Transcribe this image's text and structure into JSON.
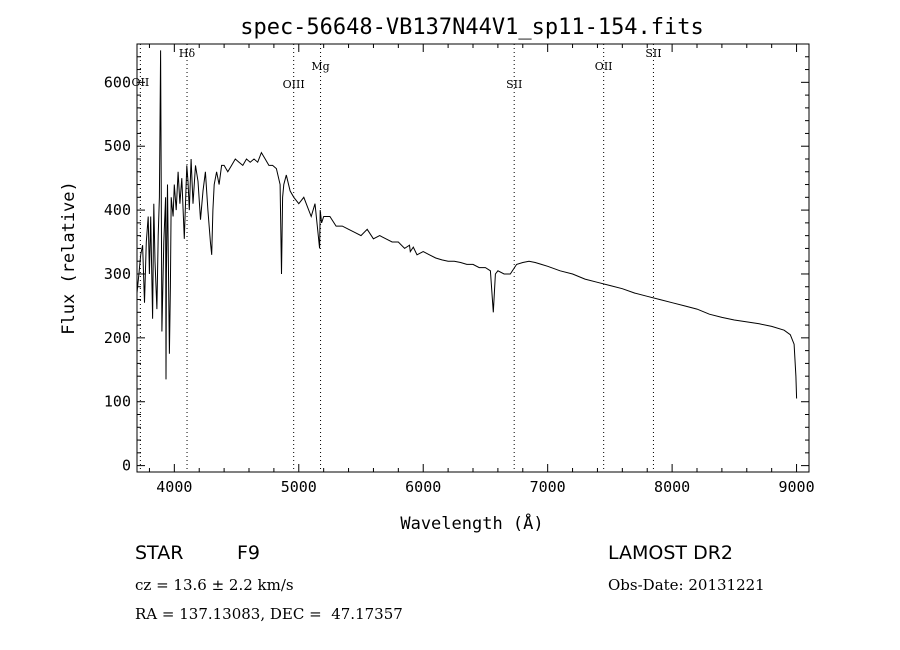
{
  "chart_data": {
    "type": "line",
    "title": "spec-56648-VB137N44V1_sp11-154.fits",
    "xlabel": "Wavelength (Å)",
    "ylabel": "Flux (relative)",
    "xlim": [
      3700,
      9100
    ],
    "ylim": [
      -10,
      660
    ],
    "x_ticks": [
      4000,
      5000,
      6000,
      7000,
      8000,
      9000
    ],
    "y_ticks": [
      0,
      100,
      200,
      300,
      400,
      500,
      600
    ],
    "grid": false,
    "line_color": "#000000",
    "lines": [
      {
        "label": "OII",
        "x": 3727
      },
      {
        "label": "Hδ",
        "x": 4102
      },
      {
        "label": "OIII",
        "x": 4959
      },
      {
        "label": "Mg",
        "x": 5175
      },
      {
        "label": "SII",
        "x": 6731
      },
      {
        "label": "OII",
        "x": 7450
      },
      {
        "label": "SII",
        "x": 7850
      }
    ],
    "series": [
      {
        "x": [
          3700,
          3715,
          3730,
          3745,
          3760,
          3775,
          3790,
          3800,
          3810,
          3825,
          3835,
          3845,
          3860,
          3870,
          3880,
          3890,
          3900,
          3915,
          3930,
          3933,
          3936,
          3945,
          3960,
          3968,
          3975,
          3990,
          4000,
          4015,
          4030,
          4045,
          4060,
          4080,
          4100,
          4110,
          4120,
          4135,
          4150,
          4170,
          4190,
          4210,
          4230,
          4250,
          4270,
          4290,
          4300,
          4310,
          4320,
          4340,
          4360,
          4380,
          4400,
          4430,
          4460,
          4490,
          4520,
          4550,
          4580,
          4610,
          4640,
          4670,
          4700,
          4730,
          4760,
          4790,
          4820,
          4850,
          4861,
          4870,
          4880,
          4900,
          4930,
          4960,
          5000,
          5040,
          5080,
          5100,
          5130,
          5167,
          5172,
          5183,
          5200,
          5250,
          5300,
          5350,
          5400,
          5450,
          5500,
          5550,
          5600,
          5650,
          5700,
          5750,
          5800,
          5850,
          5890,
          5896,
          5920,
          5950,
          6000,
          6050,
          6100,
          6150,
          6200,
          6250,
          6300,
          6350,
          6400,
          6450,
          6500,
          6540,
          6563,
          6580,
          6600,
          6650,
          6700,
          6750,
          6800,
          6850,
          6900,
          6950,
          7000,
          7100,
          7200,
          7300,
          7400,
          7500,
          7600,
          7700,
          7800,
          7900,
          8000,
          8100,
          8200,
          8300,
          8400,
          8500,
          8600,
          8700,
          8800,
          8900,
          8950,
          8980,
          8995,
          9000
        ],
        "y": [
          270,
          300,
          330,
          345,
          255,
          350,
          390,
          300,
          390,
          230,
          410,
          320,
          245,
          360,
          420,
          650,
          210,
          350,
          420,
          135,
          300,
          440,
          175,
          280,
          420,
          390,
          440,
          400,
          460,
          410,
          450,
          355,
          470,
          445,
          400,
          480,
          410,
          470,
          445,
          385,
          430,
          460,
          400,
          350,
          330,
          400,
          440,
          460,
          440,
          470,
          470,
          460,
          470,
          480,
          475,
          470,
          480,
          475,
          480,
          475,
          490,
          480,
          470,
          470,
          465,
          440,
          300,
          420,
          440,
          455,
          430,
          420,
          410,
          420,
          400,
          390,
          410,
          340,
          400,
          380,
          390,
          390,
          375,
          375,
          370,
          365,
          360,
          370,
          355,
          360,
          355,
          350,
          350,
          340,
          345,
          335,
          342,
          330,
          335,
          330,
          325,
          322,
          320,
          320,
          318,
          315,
          315,
          310,
          310,
          305,
          240,
          300,
          305,
          300,
          300,
          315,
          318,
          320,
          318,
          315,
          312,
          305,
          300,
          292,
          287,
          282,
          277,
          270,
          265,
          260,
          255,
          250,
          245,
          237,
          232,
          228,
          225,
          222,
          218,
          212,
          205,
          190,
          140,
          105
        ]
      }
    ]
  },
  "info": {
    "class_label": "STAR",
    "subclass": "F9",
    "survey": "LAMOST DR2",
    "cz": "cz = 13.6 ± 2.2 km/s",
    "obs_date": "Obs-Date: 20131221",
    "coords": "RA = 137.13083, DEC =  47.17357"
  }
}
